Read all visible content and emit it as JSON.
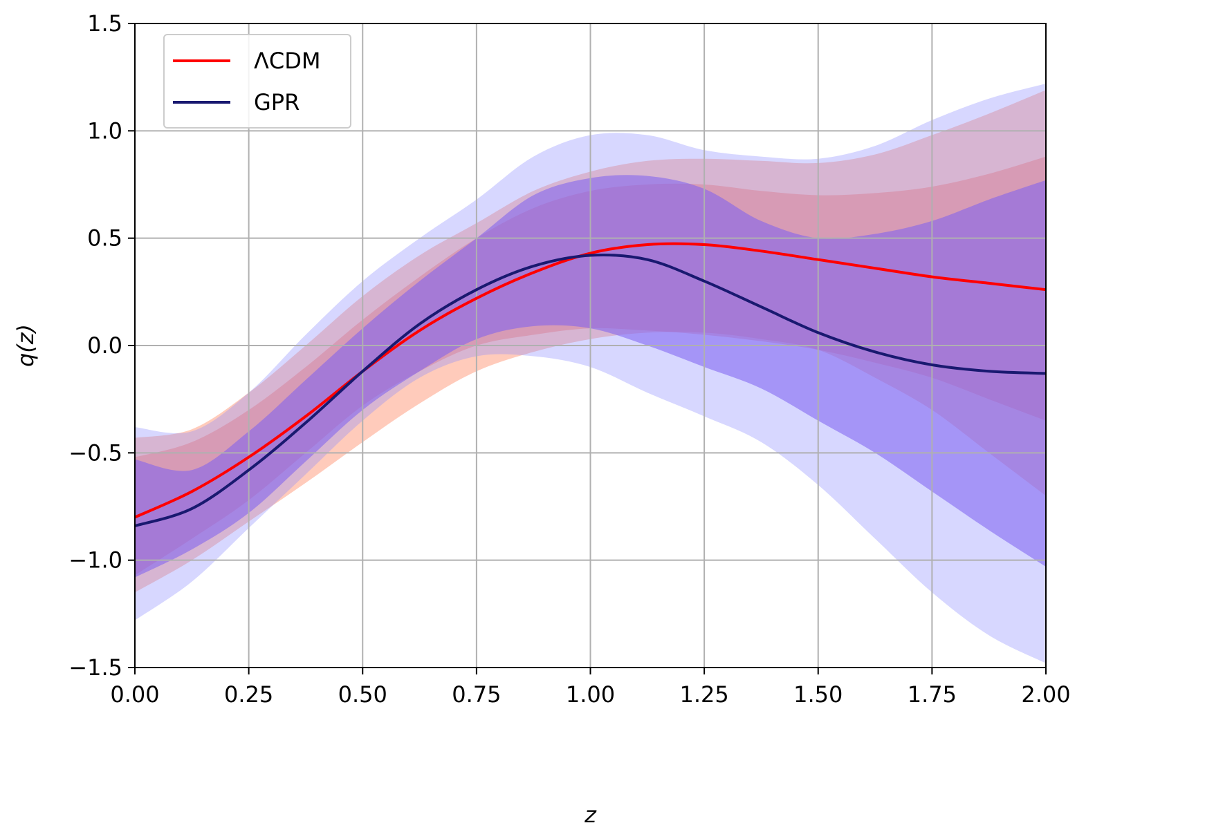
{
  "chart_data": {
    "type": "line",
    "title": "",
    "xlabel": "z",
    "ylabel": "q(z)",
    "xlim": [
      0,
      2
    ],
    "ylim": [
      -1.5,
      1.5
    ],
    "grid": true,
    "legend_position": "top-left",
    "xticks": [
      0,
      0.25,
      0.5,
      0.75,
      1.0,
      1.25,
      1.5,
      1.75,
      2.0
    ],
    "xtick_labels": [
      "0.00",
      "0.25",
      "0.50",
      "0.75",
      "1.00",
      "1.25",
      "1.50",
      "1.75",
      "2.00"
    ],
    "yticks": [
      -1.5,
      -1.0,
      -0.5,
      0.0,
      0.5,
      1.0,
      1.5
    ],
    "ytick_labels": [
      "−1.5",
      "−1.0",
      "−0.5",
      "0.0",
      "0.5",
      "1.0",
      "1.5"
    ],
    "x": [
      0,
      0.125,
      0.25,
      0.375,
      0.5,
      0.625,
      0.75,
      0.875,
      1.0,
      1.125,
      1.25,
      1.375,
      1.5,
      1.625,
      1.75,
      1.875,
      2.0
    ],
    "series": [
      {
        "name": "ΛCDM",
        "color": "#ff0000",
        "values": [
          -0.8,
          -0.68,
          -0.52,
          -0.33,
          -0.12,
          0.07,
          0.22,
          0.34,
          0.43,
          0.47,
          0.47,
          0.44,
          0.4,
          0.36,
          0.32,
          0.29,
          0.26
        ],
        "band1_lower": [
          -1.07,
          -0.9,
          -0.72,
          -0.5,
          -0.28,
          -0.12,
          0.0,
          0.05,
          0.08,
          0.07,
          0.05,
          0.02,
          -0.02,
          -0.08,
          -0.15,
          -0.25,
          -0.35
        ],
        "band1_upper": [
          -0.52,
          -0.45,
          -0.3,
          -0.1,
          0.12,
          0.32,
          0.5,
          0.64,
          0.72,
          0.75,
          0.75,
          0.72,
          0.7,
          0.71,
          0.74,
          0.8,
          0.88
        ],
        "band2_lower": [
          -1.15,
          -1.0,
          -0.82,
          -0.64,
          -0.45,
          -0.27,
          -0.12,
          -0.03,
          0.03,
          0.06,
          0.06,
          0.03,
          -0.02,
          -0.15,
          -0.3,
          -0.5,
          -0.7
        ],
        "band2_upper": [
          -0.43,
          -0.39,
          -0.22,
          0.0,
          0.23,
          0.42,
          0.57,
          0.72,
          0.81,
          0.86,
          0.87,
          0.86,
          0.85,
          0.89,
          0.98,
          1.08,
          1.19
        ]
      },
      {
        "name": "GPR",
        "color": "#191970",
        "values": [
          -0.84,
          -0.76,
          -0.58,
          -0.36,
          -0.12,
          0.1,
          0.26,
          0.37,
          0.42,
          0.4,
          0.3,
          0.18,
          0.06,
          -0.03,
          -0.09,
          -0.12,
          -0.13
        ],
        "band1_lower": [
          -1.08,
          -0.95,
          -0.78,
          -0.54,
          -0.3,
          -0.12,
          0.03,
          0.09,
          0.08,
          0.0,
          -0.1,
          -0.2,
          -0.35,
          -0.5,
          -0.68,
          -0.86,
          -1.03
        ],
        "band1_upper": [
          -0.53,
          -0.58,
          -0.4,
          -0.16,
          0.08,
          0.3,
          0.5,
          0.7,
          0.78,
          0.79,
          0.73,
          0.58,
          0.5,
          0.52,
          0.58,
          0.68,
          0.77
        ],
        "band2_lower": [
          -1.28,
          -1.1,
          -0.85,
          -0.6,
          -0.35,
          -0.15,
          -0.05,
          -0.05,
          -0.1,
          -0.22,
          -0.33,
          -0.45,
          -0.65,
          -0.9,
          -1.15,
          -1.35,
          -1.48
        ],
        "band2_upper": [
          -0.38,
          -0.4,
          -0.22,
          0.05,
          0.3,
          0.5,
          0.68,
          0.88,
          0.98,
          0.98,
          0.91,
          0.88,
          0.87,
          0.93,
          1.05,
          1.15,
          1.22
        ]
      }
    ],
    "bands": [
      {
        "name": "ΛCDM 2σ",
        "series": "ΛCDM",
        "level": 2,
        "color": "#ff6a3d",
        "opacity": 0.35
      },
      {
        "name": "ΛCDM 1σ",
        "series": "ΛCDM",
        "level": 1,
        "color": "#ff5a3d",
        "opacity": 0.35
      },
      {
        "name": "GPR 2σ",
        "series": "GPR",
        "level": 2,
        "color": "#8c8cff",
        "opacity": 0.35
      },
      {
        "name": "GPR 1σ",
        "series": "GPR",
        "level": 1,
        "color": "#7c5ff0",
        "opacity": 0.55
      }
    ]
  }
}
